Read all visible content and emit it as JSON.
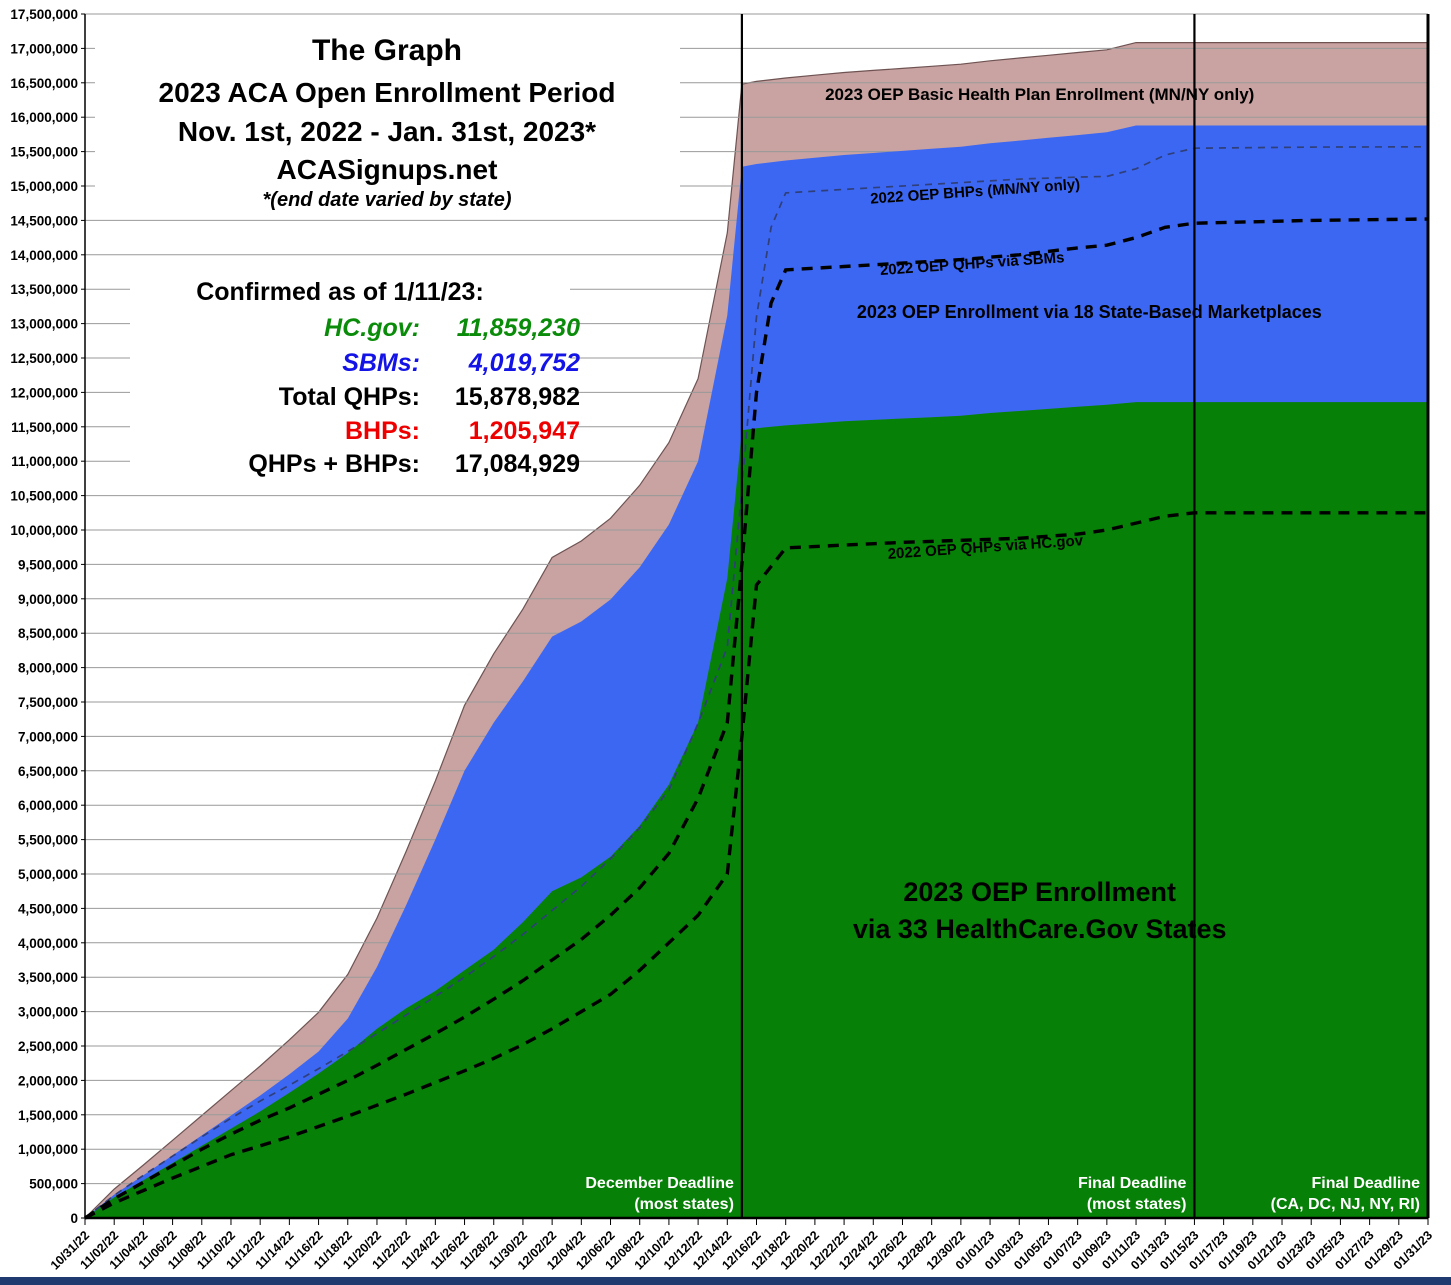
{
  "stats": {
    "heading": "Confirmed as of 1/11/23:",
    "rows": [
      {
        "label": "HC.gov:",
        "value": "11,859,230",
        "color": "#0a8c0a",
        "italic": true
      },
      {
        "label": "SBMs:",
        "value": "4,019,752",
        "color": "#1414e6",
        "italic": true
      },
      {
        "label": "Total QHPs:",
        "value": "15,878,982",
        "color": "#000000",
        "italic": false
      },
      {
        "label": "BHPs:",
        "value": "1,205,947",
        "color": "#ee0000",
        "italic": false
      },
      {
        "label": "QHPs + BHPs:",
        "value": "17,084,929",
        "color": "#000000",
        "italic": false
      }
    ]
  },
  "chart_data": {
    "type": "area",
    "title_lines": [
      "The Graph",
      "2023 ACA Open Enrollment Period",
      "Nov. 1st, 2022 - Jan. 31st, 2023*",
      "ACASignups.net",
      "*(end date varied by state)"
    ],
    "grid": true,
    "colors": {
      "hcgov": "#068006",
      "sbm": "#3c67f2",
      "bhp": "#c9a2a2",
      "bhp_edge": "#6e5352",
      "dash_black": "#000000",
      "dash_blue": "#2f3f7a",
      "grid": "#999999",
      "axis": "#000000",
      "deadline_text": "#ffffff",
      "bottom_strip": "#1e3a6e"
    },
    "y_axis": {
      "min": 0,
      "max": 17500000,
      "step": 500000
    },
    "x_axis": {
      "days_per_tick": 2,
      "tick_labels": [
        "10/31/22",
        "11/02/22",
        "11/04/22",
        "11/06/22",
        "11/08/22",
        "11/10/22",
        "11/12/22",
        "11/14/22",
        "11/16/22",
        "11/18/22",
        "11/20/22",
        "11/22/22",
        "11/24/22",
        "11/26/22",
        "11/28/22",
        "11/30/22",
        "12/02/22",
        "12/04/22",
        "12/06/22",
        "12/08/22",
        "12/10/22",
        "12/12/22",
        "12/14/22",
        "12/16/22",
        "12/18/22",
        "12/20/22",
        "12/22/22",
        "12/24/22",
        "12/26/22",
        "12/28/22",
        "12/30/22",
        "01/01/23",
        "01/03/23",
        "01/05/23",
        "01/07/23",
        "01/09/23",
        "01/11/23",
        "01/13/23",
        "01/15/23",
        "01/17/23",
        "01/19/23",
        "01/21/23",
        "01/23/23",
        "01/25/23",
        "01/27/23",
        "01/29/23",
        "01/31/23"
      ]
    },
    "series": [
      {
        "id": "bhp2023",
        "name": "2023 OEP Basic Health Plan Enrollment (MN/NY only)",
        "kind": "stacked-area-top",
        "color": "#c9a2a2",
        "points": [
          [
            0,
            0
          ],
          [
            2,
            420000
          ],
          [
            4,
            770000
          ],
          [
            6,
            1130000
          ],
          [
            8,
            1490000
          ],
          [
            10,
            1850000
          ],
          [
            12,
            2210000
          ],
          [
            14,
            2590000
          ],
          [
            16,
            2990000
          ],
          [
            18,
            3540000
          ],
          [
            20,
            4360000
          ],
          [
            22,
            5330000
          ],
          [
            24,
            6350000
          ],
          [
            26,
            7450000
          ],
          [
            28,
            8200000
          ],
          [
            30,
            8850000
          ],
          [
            32,
            9600000
          ],
          [
            34,
            9840000
          ],
          [
            36,
            10170000
          ],
          [
            38,
            10650000
          ],
          [
            40,
            11270000
          ],
          [
            42,
            12200000
          ],
          [
            44,
            14320000
          ],
          [
            45,
            16480000
          ],
          [
            46,
            16520000
          ],
          [
            48,
            16570000
          ],
          [
            50,
            16610000
          ],
          [
            52,
            16650000
          ],
          [
            54,
            16680000
          ],
          [
            56,
            16710000
          ],
          [
            58,
            16740000
          ],
          [
            60,
            16770000
          ],
          [
            62,
            16820000
          ],
          [
            64,
            16860000
          ],
          [
            66,
            16900000
          ],
          [
            68,
            16940000
          ],
          [
            70,
            16980000
          ],
          [
            72,
            17084929
          ],
          [
            78,
            17084929
          ],
          [
            85,
            17084929
          ],
          [
            92,
            17084929
          ]
        ]
      },
      {
        "id": "sbm2023",
        "name": "2023 OEP Enrollment via 18 State-Based Marketplaces",
        "kind": "stacked-area-top",
        "color": "#3c67f2",
        "points": [
          [
            0,
            0
          ],
          [
            2,
            340000
          ],
          [
            4,
            620000
          ],
          [
            6,
            910000
          ],
          [
            8,
            1200000
          ],
          [
            10,
            1490000
          ],
          [
            12,
            1780000
          ],
          [
            14,
            2090000
          ],
          [
            16,
            2420000
          ],
          [
            18,
            2900000
          ],
          [
            20,
            3650000
          ],
          [
            22,
            4550000
          ],
          [
            24,
            5500000
          ],
          [
            26,
            6500000
          ],
          [
            28,
            7200000
          ],
          [
            30,
            7800000
          ],
          [
            32,
            8450000
          ],
          [
            34,
            8670000
          ],
          [
            36,
            8990000
          ],
          [
            38,
            9460000
          ],
          [
            40,
            10080000
          ],
          [
            42,
            11000000
          ],
          [
            44,
            13120000
          ],
          [
            45,
            15280000
          ],
          [
            46,
            15320000
          ],
          [
            48,
            15370000
          ],
          [
            50,
            15410000
          ],
          [
            52,
            15450000
          ],
          [
            54,
            15480000
          ],
          [
            56,
            15510000
          ],
          [
            58,
            15540000
          ],
          [
            60,
            15570000
          ],
          [
            62,
            15620000
          ],
          [
            64,
            15660000
          ],
          [
            66,
            15700000
          ],
          [
            68,
            15740000
          ],
          [
            70,
            15780000
          ],
          [
            72,
            15878982
          ],
          [
            78,
            15878982
          ],
          [
            85,
            15878982
          ],
          [
            92,
            15878982
          ]
        ]
      },
      {
        "id": "hcgov2023",
        "name": "2023 OEP Enrollment via 33 HealthCare.Gov States",
        "kind": "stacked-area-top",
        "color": "#068006",
        "points": [
          [
            0,
            0
          ],
          [
            2,
            300000
          ],
          [
            4,
            550000
          ],
          [
            6,
            800000
          ],
          [
            8,
            1050000
          ],
          [
            10,
            1300000
          ],
          [
            12,
            1550000
          ],
          [
            14,
            1820000
          ],
          [
            16,
            2100000
          ],
          [
            18,
            2400000
          ],
          [
            20,
            2750000
          ],
          [
            22,
            3050000
          ],
          [
            24,
            3300000
          ],
          [
            26,
            3600000
          ],
          [
            28,
            3900000
          ],
          [
            30,
            4300000
          ],
          [
            32,
            4750000
          ],
          [
            34,
            4950000
          ],
          [
            36,
            5250000
          ],
          [
            38,
            5700000
          ],
          [
            40,
            6300000
          ],
          [
            42,
            7200000
          ],
          [
            44,
            9300000
          ],
          [
            45,
            11450000
          ],
          [
            46,
            11480000
          ],
          [
            48,
            11520000
          ],
          [
            50,
            11550000
          ],
          [
            52,
            11580000
          ],
          [
            54,
            11600000
          ],
          [
            56,
            11620000
          ],
          [
            58,
            11640000
          ],
          [
            60,
            11660000
          ],
          [
            62,
            11700000
          ],
          [
            64,
            11730000
          ],
          [
            66,
            11760000
          ],
          [
            68,
            11790000
          ],
          [
            70,
            11820000
          ],
          [
            72,
            11859230
          ],
          [
            78,
            11859230
          ],
          [
            85,
            11859230
          ],
          [
            92,
            11859230
          ]
        ]
      },
      {
        "id": "bhp2022",
        "name": "2022 OEP BHPs (MN/NY only)",
        "kind": "dashed-line-thin",
        "color": "#2f3f7a",
        "points": [
          [
            0,
            0
          ],
          [
            2,
            330000
          ],
          [
            4,
            620000
          ],
          [
            6,
            900000
          ],
          [
            8,
            1180000
          ],
          [
            10,
            1450000
          ],
          [
            12,
            1700000
          ],
          [
            14,
            1930000
          ],
          [
            16,
            2170000
          ],
          [
            18,
            2420000
          ],
          [
            20,
            2680000
          ],
          [
            22,
            2950000
          ],
          [
            24,
            3220000
          ],
          [
            26,
            3500000
          ],
          [
            28,
            3800000
          ],
          [
            30,
            4120000
          ],
          [
            32,
            4470000
          ],
          [
            34,
            4820000
          ],
          [
            36,
            5220000
          ],
          [
            38,
            5670000
          ],
          [
            40,
            6220000
          ],
          [
            42,
            7190000
          ],
          [
            44,
            8300000
          ],
          [
            45,
            10600000
          ],
          [
            46,
            13100000
          ],
          [
            47,
            14400000
          ],
          [
            48,
            14900000
          ],
          [
            52,
            14950000
          ],
          [
            56,
            15000000
          ],
          [
            60,
            15050000
          ],
          [
            64,
            15100000
          ],
          [
            68,
            15130000
          ],
          [
            70,
            15140000
          ],
          [
            72,
            15250000
          ],
          [
            74,
            15450000
          ],
          [
            76,
            15550000
          ],
          [
            84,
            15565000
          ],
          [
            92,
            15570000
          ]
        ]
      },
      {
        "id": "qhp2022",
        "name": "2022 OEP QHPs via SBMs",
        "kind": "dashed-line",
        "color": "#000000",
        "points": [
          [
            0,
            0
          ],
          [
            2,
            280000
          ],
          [
            4,
            520000
          ],
          [
            6,
            760000
          ],
          [
            8,
            1000000
          ],
          [
            10,
            1220000
          ],
          [
            12,
            1420000
          ],
          [
            14,
            1600000
          ],
          [
            16,
            1800000
          ],
          [
            18,
            2000000
          ],
          [
            20,
            2220000
          ],
          [
            22,
            2450000
          ],
          [
            24,
            2680000
          ],
          [
            26,
            2920000
          ],
          [
            28,
            3180000
          ],
          [
            30,
            3450000
          ],
          [
            32,
            3750000
          ],
          [
            34,
            4050000
          ],
          [
            36,
            4400000
          ],
          [
            38,
            4800000
          ],
          [
            40,
            5300000
          ],
          [
            42,
            6100000
          ],
          [
            44,
            7200000
          ],
          [
            45,
            9500000
          ],
          [
            46,
            12000000
          ],
          [
            47,
            13300000
          ],
          [
            48,
            13780000
          ],
          [
            52,
            13830000
          ],
          [
            56,
            13880000
          ],
          [
            60,
            13930000
          ],
          [
            64,
            14000000
          ],
          [
            68,
            14100000
          ],
          [
            70,
            14140000
          ],
          [
            72,
            14250000
          ],
          [
            74,
            14400000
          ],
          [
            76,
            14460000
          ],
          [
            84,
            14500000
          ],
          [
            92,
            14520000
          ]
        ]
      },
      {
        "id": "hcgov2022",
        "name": "2022 OEP QHPs via HC.gov",
        "kind": "dashed-line",
        "color": "#000000",
        "points": [
          [
            0,
            0
          ],
          [
            2,
            220000
          ],
          [
            4,
            400000
          ],
          [
            6,
            580000
          ],
          [
            8,
            750000
          ],
          [
            10,
            920000
          ],
          [
            12,
            1050000
          ],
          [
            14,
            1180000
          ],
          [
            16,
            1330000
          ],
          [
            18,
            1480000
          ],
          [
            20,
            1640000
          ],
          [
            22,
            1800000
          ],
          [
            24,
            1970000
          ],
          [
            26,
            2140000
          ],
          [
            28,
            2320000
          ],
          [
            30,
            2520000
          ],
          [
            32,
            2750000
          ],
          [
            34,
            3000000
          ],
          [
            36,
            3250000
          ],
          [
            38,
            3600000
          ],
          [
            40,
            4000000
          ],
          [
            42,
            4400000
          ],
          [
            44,
            5000000
          ],
          [
            45,
            7000000
          ],
          [
            46,
            9200000
          ],
          [
            48,
            9740000
          ],
          [
            52,
            9780000
          ],
          [
            56,
            9820000
          ],
          [
            60,
            9850000
          ],
          [
            64,
            9880000
          ],
          [
            68,
            9940000
          ],
          [
            70,
            10000000
          ],
          [
            72,
            10100000
          ],
          [
            74,
            10200000
          ],
          [
            76,
            10250000
          ],
          [
            84,
            10250000
          ],
          [
            92,
            10250000
          ]
        ]
      }
    ],
    "deadlines": [
      {
        "day": 45,
        "line1": "December Deadline",
        "line2": "(most states)"
      },
      {
        "day": 76,
        "line1": "Final Deadline",
        "line2": "(most states)"
      },
      {
        "day": 92,
        "line1": "Final Deadline",
        "line2": "(CA, DC, NJ, NY, RI)"
      }
    ],
    "annotations": [
      {
        "text": "2023 OEP Basic Health Plan Enrollment (MN/NY only)",
        "day": 65.4,
        "value": 16250000,
        "size": 17,
        "rotate": 0
      },
      {
        "text": "2022 OEP BHPs (MN/NY only)",
        "day": 61.0,
        "value": 14850000,
        "size": 15,
        "rotate": -4
      },
      {
        "text": "2022 OEP QHPs via SBMs",
        "day": 60.8,
        "value": 13800000,
        "size": 15,
        "rotate": -4
      },
      {
        "text": "2023 OEP Enrollment via 18 State-Based Marketplaces",
        "day": 68.8,
        "value": 13080000,
        "size": 18,
        "rotate": 0
      },
      {
        "text": "2022 OEP QHPs via HC.gov",
        "day": 61.7,
        "value": 9680000,
        "size": 15,
        "rotate": -4
      },
      {
        "text": "2023 OEP Enrollment",
        "day": 65.4,
        "value": 4610000,
        "size": 27,
        "rotate": 0
      },
      {
        "text": "via 33 HealthCare.Gov States",
        "day": 65.4,
        "value": 4070000,
        "size": 27,
        "rotate": 0
      }
    ]
  }
}
